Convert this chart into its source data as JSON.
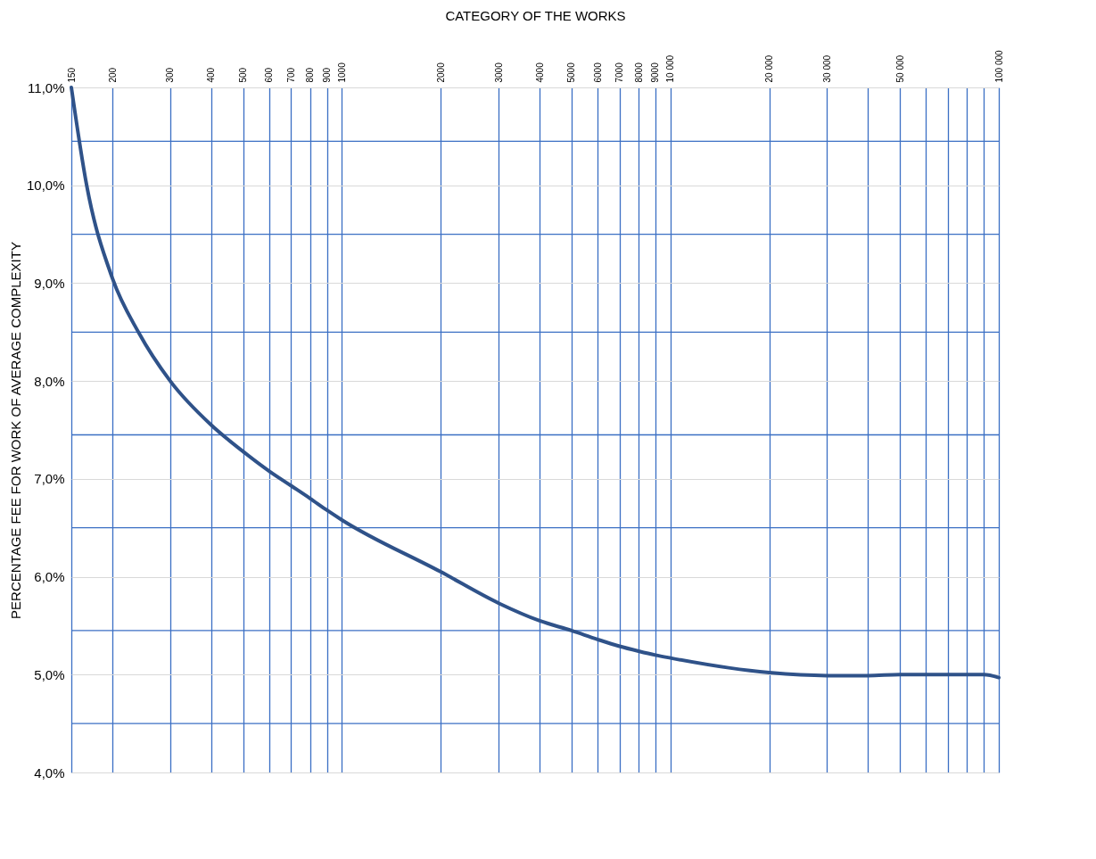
{
  "chart_data": {
    "type": "line",
    "xlabel": "CATEGORY OF THE WORKS",
    "ylabel": "PERCENTAGE FEE FOR WORK OF AVERAGE COMPLEXITY",
    "x": [
      150,
      167,
      200,
      240,
      300,
      400,
      500,
      600,
      700,
      800,
      900,
      1000,
      2000,
      3000,
      4000,
      5000,
      6000,
      7000,
      8000,
      9000,
      10000,
      20000,
      30000,
      40000,
      50000,
      70000,
      90000,
      100000
    ],
    "series": [
      {
        "color": "#2f5289",
        "values": [
          11.0,
          10.0,
          9.05,
          8.5,
          8.0,
          7.55,
          7.28,
          7.08,
          6.93,
          6.8,
          6.68,
          6.58,
          6.05,
          5.73,
          5.55,
          5.45,
          5.36,
          5.29,
          5.24,
          5.2,
          5.17,
          5.02,
          4.99,
          4.99,
          5.0,
          5.0,
          5.0,
          4.97
        ]
      }
    ],
    "log": "x",
    "xlim": [
      150,
      100000
    ],
    "xticks": [
      150,
      200,
      300,
      400,
      500,
      600,
      700,
      800,
      900,
      1000,
      2000,
      3000,
      4000,
      5000,
      6000,
      7000,
      8000,
      9000,
      {
        "value": 10000,
        "label": "10 000"
      },
      {
        "value": 20000,
        "label": "20 000"
      },
      {
        "value": 30000,
        "label": "30 000"
      },
      {
        "value": 40000,
        "label": null
      },
      {
        "value": 50000,
        "label": "50 000"
      },
      {
        "value": 60000,
        "label": null
      },
      {
        "value": 70000,
        "label": null
      },
      {
        "value": 80000,
        "label": null
      },
      {
        "value": 90000,
        "label": null
      },
      {
        "value": 100000,
        "label": "100 000"
      }
    ],
    "ylim": [
      4,
      11
    ],
    "yticks": [
      {
        "value": 4,
        "label": "4,0%"
      },
      {
        "value": 5,
        "label": "5,0%"
      },
      {
        "value": 6,
        "label": "6,0%"
      },
      {
        "value": 7,
        "label": "7,0%"
      },
      {
        "value": 8,
        "label": "8,0%"
      },
      {
        "value": 9,
        "label": "9,0%"
      },
      {
        "value": 10,
        "label": "10,0%"
      },
      {
        "value": 11,
        "label": "11,0%"
      }
    ],
    "grid": true,
    "ref_lines": [
      {
        "axis": "y",
        "value": 4.5,
        "color": "#3b6fc4"
      },
      {
        "axis": "y",
        "value": 5.45,
        "color": "#3b6fc4"
      },
      {
        "axis": "y",
        "value": 6.5,
        "color": "#3b6fc4"
      },
      {
        "axis": "y",
        "value": 7.45,
        "color": "#3b6fc4"
      },
      {
        "axis": "y",
        "value": 8.5,
        "color": "#3b6fc4"
      },
      {
        "axis": "y",
        "value": 9.5,
        "color": "#3b6fc4"
      },
      {
        "axis": "y",
        "value": 10.45,
        "color": "#3b6fc4"
      }
    ],
    "marker": "none",
    "line_style": "solid"
  }
}
